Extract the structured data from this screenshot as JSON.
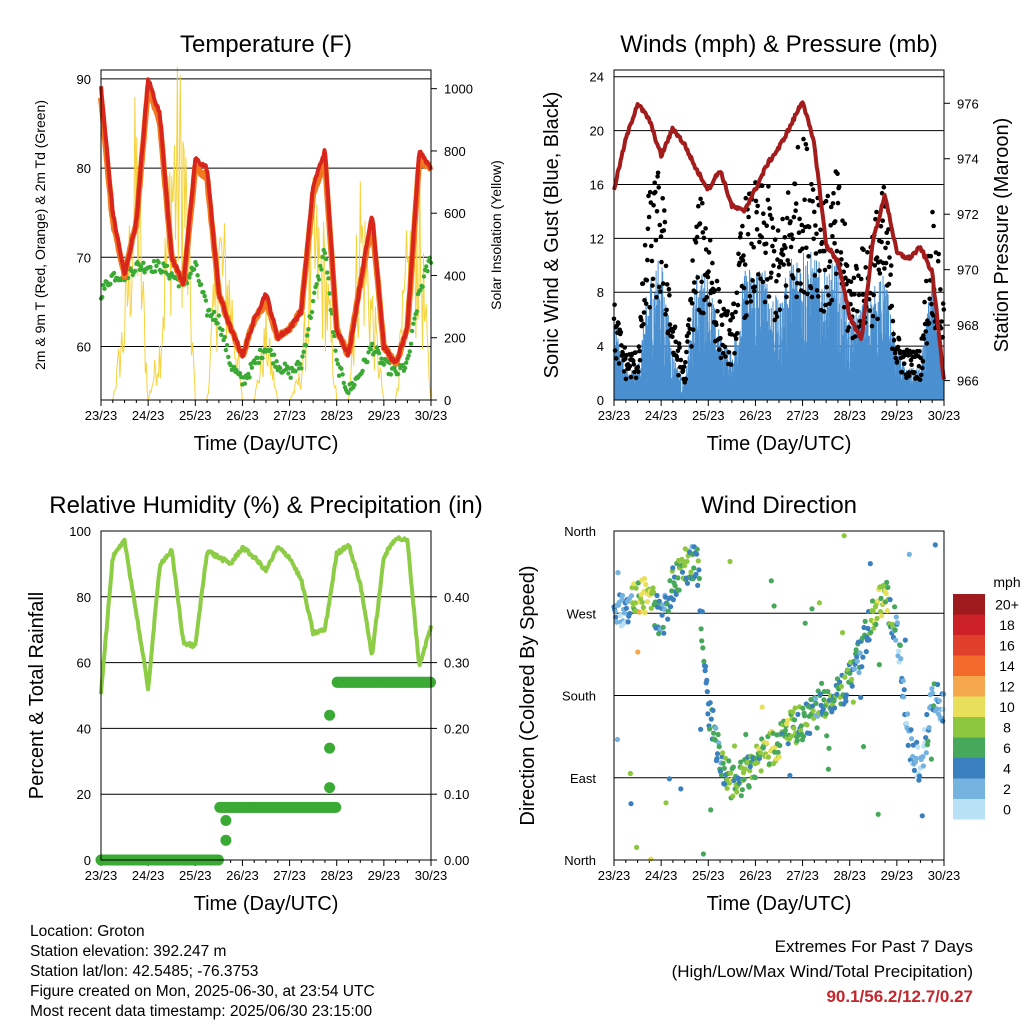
{
  "x_tick_labels": [
    "23/23",
    "24/23",
    "25/23",
    "26/23",
    "27/23",
    "28/23",
    "29/23",
    "30/23"
  ],
  "x_axis_label": "Time (Day/UTC)",
  "temperature": {
    "title": "Temperature (F)",
    "left_label": "2m & 9m T (Red, Orange) & 2m Td (Green)",
    "right_label": "Solar Insolation (Yellow)",
    "left_ticks": [
      60,
      70,
      80,
      90
    ],
    "right_ticks": [
      0,
      200,
      400,
      600,
      800,
      1000
    ],
    "colors": {
      "t2m": "#d9261c",
      "t9m": "#f0781e",
      "td": "#3aaa35",
      "solar": "#f5d33c"
    }
  },
  "winds": {
    "title": "Winds (mph) & Pressure (mb)",
    "left_label": "Sonic Wind & Gust (Blue, Black)",
    "right_label": "Station Pressure (Maroon)",
    "left_ticks": [
      0,
      4,
      8,
      12,
      16,
      20,
      24
    ],
    "right_ticks": [
      966,
      968,
      970,
      972,
      974,
      976
    ],
    "colors": {
      "wind": "#4a90d0",
      "gust": "#000000",
      "pressure": "#a31c1c"
    }
  },
  "humidity": {
    "title": "Relative Humidity (%) & Precipitation (in)",
    "left_label": "Percent & Total Rainfall",
    "left_ticks": [
      0,
      20,
      40,
      60,
      80,
      100
    ],
    "right_ticks": [
      "0.00",
      "0.10",
      "0.20",
      "0.30",
      "0.40"
    ],
    "colors": {
      "rh": "#8dcc45",
      "precip": "#3aaa35"
    }
  },
  "direction": {
    "title": "Wind Direction",
    "left_label": "Direction (Colored By Speed)",
    "y_ticks": [
      "North",
      "East",
      "South",
      "West",
      "North"
    ],
    "legend_title": "mph",
    "legend_labels": [
      "20+",
      "18",
      "16",
      "14",
      "12",
      "10",
      "8",
      "6",
      "4",
      "2",
      "0"
    ],
    "legend_colors": [
      "#9e1a1d",
      "#cc2027",
      "#e0402b",
      "#f26b2c",
      "#f5a84b",
      "#e8df5a",
      "#8dc63f",
      "#47a85b",
      "#3a80bf",
      "#74b2e0",
      "#b9e1f6"
    ]
  },
  "info": {
    "location": "Location: Groton",
    "elevation": "Station elevation: 392.247 m",
    "latlon": "Station lat/lon: 42.5485; -76.3753",
    "created": "Figure created on Mon, 2025-06-30, at 23:54 UTC",
    "recent": "Most recent data timestamp: 2025/06/30 23:15:00"
  },
  "extremes": {
    "title": "Extremes For Past 7 Days",
    "subtitle": "(High/Low/Max Wind/Total Precipitation)",
    "values": "90.1/56.2/12.7/0.27"
  },
  "chart_data": [
    {
      "type": "line",
      "title": "Temperature (F)",
      "xlabel": "Time (Day/UTC)",
      "ylabel": "2m & 9m T (Red, Orange) & 2m Td (Green)",
      "y2label": "Solar Insolation (Yellow)",
      "ylim": [
        54,
        91
      ],
      "y2lim": [
        0,
        1060
      ],
      "x": [
        23.0,
        23.25,
        23.5,
        23.75,
        24.0,
        24.25,
        24.5,
        24.75,
        25.0,
        25.25,
        25.5,
        25.75,
        26.0,
        26.25,
        26.5,
        26.75,
        27.0,
        27.25,
        27.5,
        27.75,
        28.0,
        28.25,
        28.5,
        28.75,
        29.0,
        29.25,
        29.5,
        29.75,
        30.0
      ],
      "series": [
        {
          "name": "2m T (Red)",
          "values": [
            89,
            75,
            68,
            74,
            90,
            86,
            70,
            67,
            81,
            80,
            66,
            62,
            59,
            63,
            66,
            61,
            62,
            64,
            78,
            82,
            62,
            59,
            67,
            75,
            60,
            58,
            62,
            82,
            80
          ]
        },
        {
          "name": "9m T (Orange)",
          "values": [
            88,
            74,
            68,
            74,
            89,
            85,
            70,
            67,
            80,
            79,
            66,
            62,
            59,
            63,
            65,
            61,
            62,
            64,
            77,
            81,
            62,
            59,
            67,
            74,
            60,
            58,
            62,
            81,
            80
          ]
        },
        {
          "name": "2m Td (Green)",
          "values": [
            66,
            68,
            68,
            69,
            69,
            69,
            68,
            67,
            69,
            64,
            63,
            58,
            56,
            58,
            60,
            58,
            57,
            58,
            65,
            71,
            58,
            55,
            57,
            60,
            58,
            57,
            58,
            66,
            70
          ]
        },
        {
          "name": "Solar Insolation (Yellow)",
          "axis": "right",
          "values": [
            0,
            0,
            300,
            900,
            0,
            200,
            900,
            950,
            0,
            0,
            600,
            400,
            0,
            0,
            250,
            0,
            0,
            100,
            600,
            500,
            0,
            0,
            700,
            350,
            0,
            0,
            500,
            650,
            0
          ]
        }
      ]
    },
    {
      "type": "line",
      "title": "Winds (mph) & Pressure (mb)",
      "xlabel": "Time (Day/UTC)",
      "ylabel": "Sonic Wind & Gust (Blue, Black)",
      "y2label": "Station Pressure (Maroon)",
      "ylim": [
        0,
        24.5
      ],
      "y2lim": [
        965.3,
        977.2
      ],
      "x": [
        23.0,
        23.25,
        23.5,
        23.75,
        24.0,
        24.25,
        24.5,
        24.75,
        25.0,
        25.25,
        25.5,
        25.75,
        26.0,
        26.25,
        26.5,
        26.75,
        27.0,
        27.25,
        27.5,
        27.75,
        28.0,
        28.25,
        28.5,
        28.75,
        29.0,
        29.25,
        29.5,
        29.75,
        30.0
      ],
      "series": [
        {
          "name": "Sonic Wind (Blue)",
          "values": [
            5,
            2,
            2,
            8,
            9,
            3,
            1,
            8,
            8,
            4,
            3,
            8,
            9,
            8,
            6,
            9,
            10,
            9,
            8,
            9,
            5,
            6,
            7,
            8,
            3,
            2,
            2,
            8,
            3
          ]
        },
        {
          "name": "Gust (Black)",
          "values": [
            6,
            3,
            3,
            13,
            14,
            5,
            2,
            12,
            12,
            6,
            5,
            12,
            13,
            13,
            10,
            14,
            16,
            15,
            12,
            14,
            8,
            9,
            11,
            13,
            4,
            3,
            3,
            12,
            6
          ]
        },
        {
          "name": "Station Pressure (Maroon)",
          "axis": "right",
          "values": [
            972.9,
            974.7,
            976.0,
            975.4,
            974.1,
            975.1,
            974.5,
            973.6,
            972.9,
            973.6,
            972.3,
            972.1,
            972.9,
            973.8,
            974.4,
            975.2,
            976.1,
            974.5,
            970.9,
            970.3,
            968.3,
            967.5,
            971.1,
            972.7,
            970.6,
            970.4,
            970.8,
            969.9,
            966.0
          ]
        }
      ]
    },
    {
      "type": "line",
      "title": "Relative Humidity (%) & Precipitation (in)",
      "xlabel": "Time (Day/UTC)",
      "ylabel": "Percent & Total Rainfall",
      "ylim": [
        0,
        100
      ],
      "y2lim": [
        0,
        0.5
      ],
      "x": [
        23.0,
        23.25,
        23.5,
        23.75,
        24.0,
        24.25,
        24.5,
        24.75,
        25.0,
        25.25,
        25.5,
        25.75,
        26.0,
        26.25,
        26.5,
        26.75,
        27.0,
        27.25,
        27.5,
        27.75,
        28.0,
        28.25,
        28.5,
        28.75,
        29.0,
        29.25,
        29.5,
        29.75,
        30.0
      ],
      "series": [
        {
          "name": "Relative Humidity",
          "values": [
            51,
            92,
            97,
            75,
            52,
            90,
            94,
            66,
            65,
            94,
            92,
            90,
            95,
            92,
            88,
            95,
            92,
            85,
            69,
            70,
            93,
            96,
            84,
            62,
            92,
            98,
            97,
            59,
            71
          ]
        },
        {
          "name": "Total Precipitation",
          "axis": "right",
          "values": [
            0.0,
            0.0,
            0.0,
            0.0,
            0.0,
            0.0,
            0.0,
            0.0,
            0.0,
            0.0,
            0.08,
            0.08,
            0.08,
            0.08,
            0.08,
            0.08,
            0.08,
            0.08,
            0.08,
            0.08,
            0.27,
            0.27,
            0.27,
            0.27,
            0.27,
            0.27,
            0.27,
            0.27,
            0.27
          ]
        }
      ]
    },
    {
      "type": "scatter",
      "title": "Wind Direction",
      "xlabel": "Time (Day/UTC)",
      "ylabel": "Direction (Colored By Speed)",
      "ylim": [
        0,
        360
      ],
      "y_ticks": [
        "North",
        "East",
        "South",
        "West",
        "North"
      ],
      "x": [
        23.0,
        23.25,
        23.5,
        23.75,
        24.0,
        24.25,
        24.5,
        24.75,
        25.0,
        25.25,
        25.5,
        25.75,
        26.0,
        26.25,
        26.5,
        26.75,
        27.0,
        27.25,
        27.5,
        27.75,
        28.0,
        28.25,
        28.5,
        28.75,
        29.0,
        29.25,
        29.5,
        29.75,
        30.0
      ],
      "series": [
        {
          "name": "Direction",
          "values": [
            270,
            275,
            290,
            290,
            260,
            300,
            320,
            330,
            170,
            110,
            85,
            90,
            110,
            120,
            130,
            145,
            150,
            160,
            175,
            180,
            200,
            230,
            270,
            290,
            250,
            130,
            100,
            175,
            170
          ]
        },
        {
          "name": "Speed (mph)",
          "values": [
            3,
            2,
            9,
            9,
            4,
            6,
            6,
            5,
            5,
            5,
            7,
            6,
            6,
            9,
            7,
            7,
            6,
            5,
            6,
            6,
            6,
            4,
            7,
            8,
            3,
            2,
            2,
            4,
            3
          ]
        }
      ]
    }
  ]
}
